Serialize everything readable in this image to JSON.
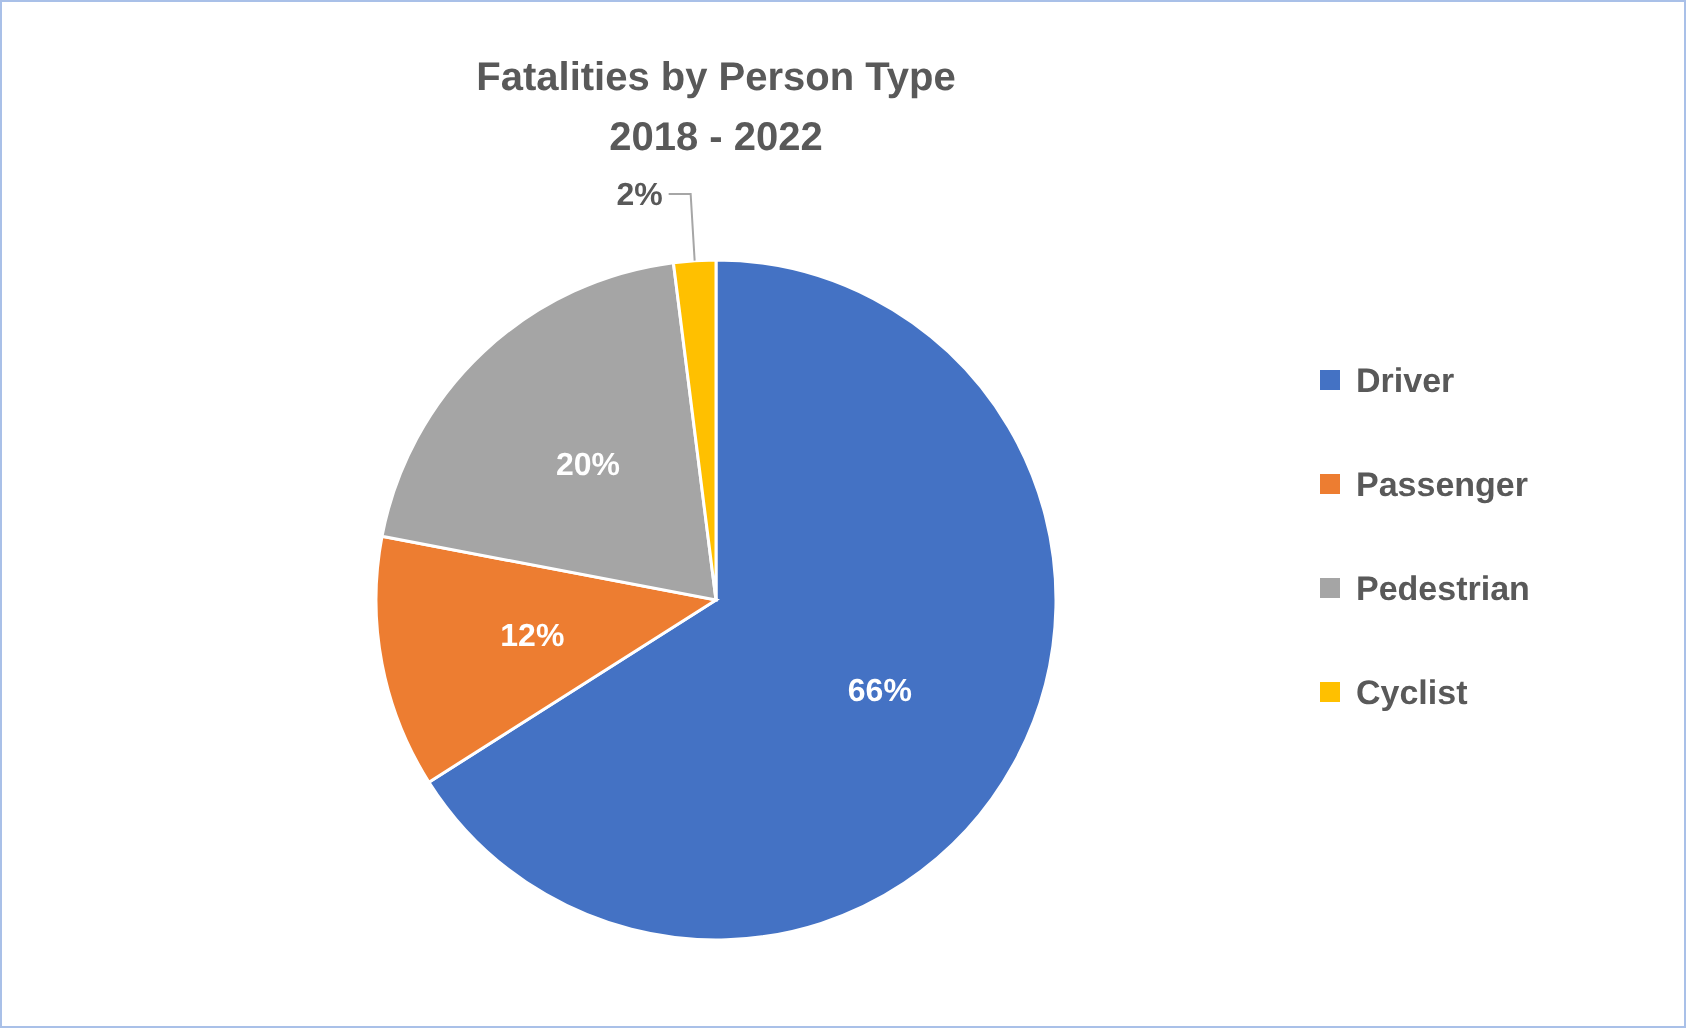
{
  "chart_data": {
    "type": "pie",
    "title": "Fatalities by Person Type\n2018 - 2022",
    "categories": [
      "Driver",
      "Passenger",
      "Pedestrian",
      "Cyclist"
    ],
    "values": [
      66,
      12,
      20,
      2
    ],
    "colors": [
      "#4472c4",
      "#ed7d31",
      "#a5a5a5",
      "#ffc000"
    ],
    "value_labels": [
      "66%",
      "12%",
      "20%",
      "2%"
    ],
    "legend": "right"
  }
}
